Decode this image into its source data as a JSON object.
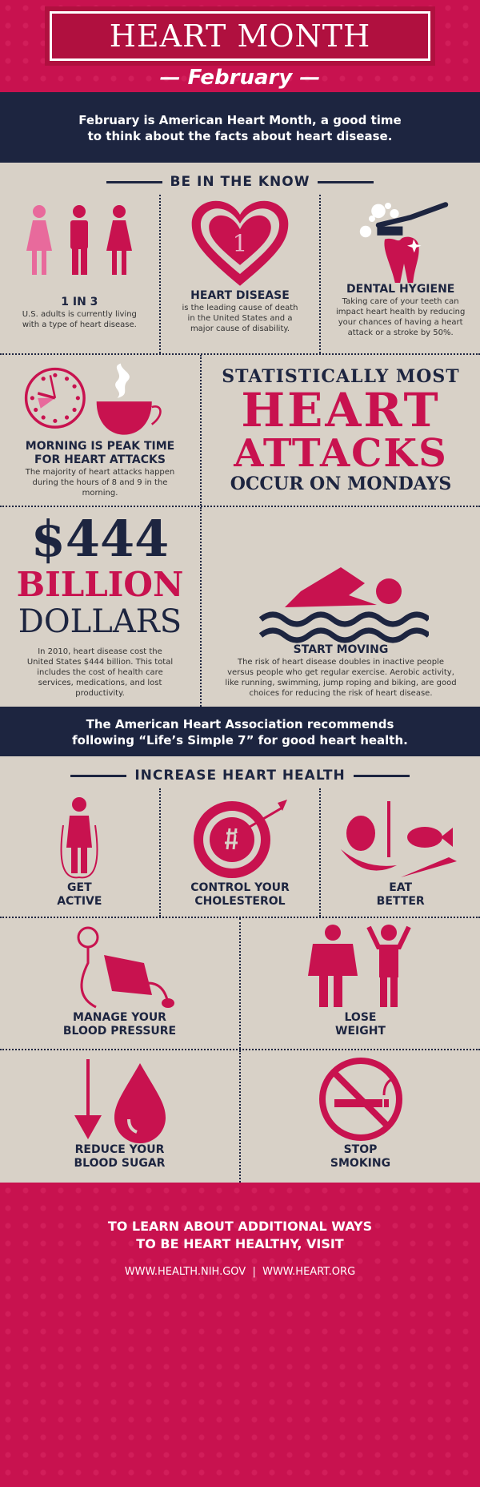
{
  "header": {
    "title": "HEART MONTH",
    "subtitle": "— February —"
  },
  "intro": {
    "line1": "February is American Heart Month, a good time",
    "line2": "to think about the facts about heart disease."
  },
  "know": {
    "title": "BE IN THE KNOW",
    "items": [
      {
        "heading": "1 IN 3",
        "text": "U.S. adults is currently living with a type of heart disease.",
        "icon": "people-icon"
      },
      {
        "heading": "HEART DISEASE",
        "text": "is the leading cause of death in the United States and a major cause of disability.",
        "icon": "heart-icon",
        "badge": "1"
      },
      {
        "heading": "DENTAL HYGIENE",
        "text": "Taking care of your teeth can impact heart health by reducing your chances of having a heart attack or a stroke by 50%.",
        "icon": "tooth-icon"
      }
    ],
    "morning": {
      "heading1": "MORNING IS PEAK TIME",
      "heading2": "FOR HEART ATTACKS",
      "text": "The majority of heart attacks happen during the hours of 8 and 9 in the morning."
    },
    "mondays": {
      "l1": "STATISTICALLY MOST",
      "l2": "HEART",
      "l3": "ATTACKS",
      "l4": "OCCUR ON MONDAYS"
    },
    "cost": {
      "l1": "$444",
      "l2": "BILLION",
      "l3": "DOLLARS",
      "text": "In 2010, heart disease cost the United States $444 billion. This total includes the cost of health care services, medications, and lost productivity."
    },
    "moving": {
      "heading": "START MOVING",
      "text": "The risk of heart disease doubles in inactive people versus people who get regular exercise. Aerobic activity, like running, swimming, jump roping and biking, are good choices for reducing the risk of heart disease."
    }
  },
  "aha": {
    "line1": "The American Heart Association recommends",
    "line2": "following “Life’s Simple 7” for good heart health."
  },
  "health": {
    "title": "INCREASE HEART HEALTH",
    "row1": [
      {
        "l1": "GET",
        "l2": "ACTIVE"
      },
      {
        "l1": "CONTROL YOUR",
        "l2": "CHOLESTEROL"
      },
      {
        "l1": "EAT",
        "l2": "BETTER"
      }
    ],
    "row2": [
      {
        "l1": "MANAGE YOUR",
        "l2": "BLOOD PRESSURE"
      },
      {
        "l1": "LOSE",
        "l2": "WEIGHT"
      }
    ],
    "row3": [
      {
        "l1": "REDUCE YOUR",
        "l2": "BLOOD SUGAR"
      },
      {
        "l1": "STOP",
        "l2": "SMOKING"
      }
    ]
  },
  "footer": {
    "line1": "TO LEARN ABOUT ADDITIONAL WAYS",
    "line2": "TO BE HEART HEALTHY, VISIT",
    "links": "WWW.HEALTH.NIH.GOV  |  WWW.HEART.ORG"
  },
  "colors": {
    "magenta": "#c8124f",
    "navy": "#1d2540",
    "beige": "#d8d1c7"
  }
}
